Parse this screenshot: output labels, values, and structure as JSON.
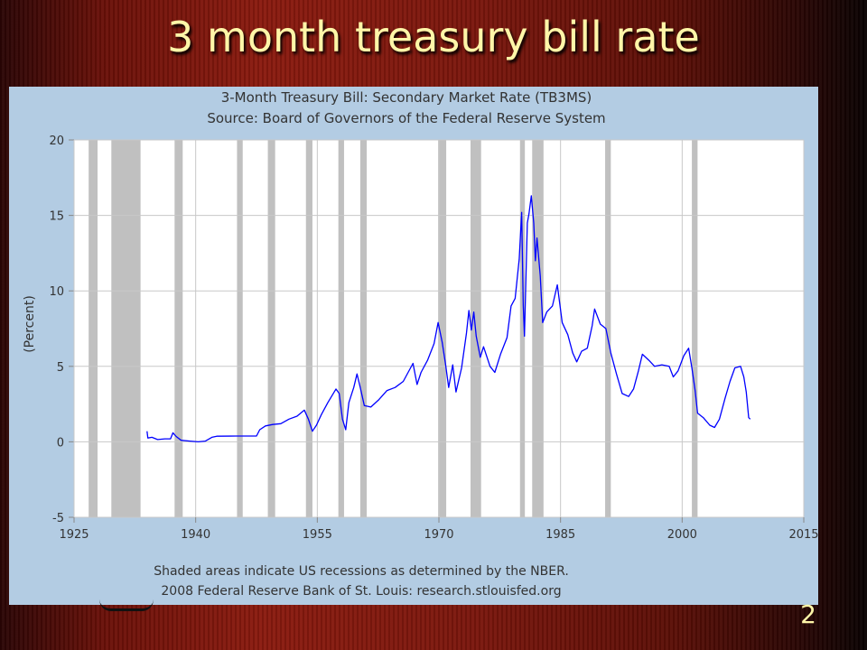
{
  "slide": {
    "title": "3 month treasury bill rate",
    "page_number": "2"
  },
  "chart_data": {
    "type": "line",
    "title": "3-Month Treasury Bill: Secondary Market Rate (TB3MS)",
    "subtitle": "Source: Board of Governors of the Federal Reserve System",
    "xlabel": "",
    "ylabel": "(Percent)",
    "xlim": [
      1925,
      2015
    ],
    "ylim": [
      -5,
      20
    ],
    "xticks": [
      "1925",
      "1940",
      "1955",
      "1970",
      "1985",
      "2000",
      "2015"
    ],
    "yticks": [
      "-5",
      "0",
      "5",
      "10",
      "15",
      "20"
    ],
    "grid": true,
    "line_color": "#0000ff",
    "recession_color": "#c0c0c0",
    "footnotes": [
      "Shaded areas indicate US recessions as determined by the NBER.",
      "2008 Federal Reserve Bank of St. Louis: research.stlouisfed.org"
    ],
    "recessions": [
      [
        1926.8,
        1927.9
      ],
      [
        1929.6,
        1933.2
      ],
      [
        1937.4,
        1938.4
      ],
      [
        1945.1,
        1945.8
      ],
      [
        1948.9,
        1949.8
      ],
      [
        1953.6,
        1954.4
      ],
      [
        1957.6,
        1958.3
      ],
      [
        1960.3,
        1961.1
      ],
      [
        1969.9,
        1970.9
      ],
      [
        1973.9,
        1975.2
      ],
      [
        1980.0,
        1980.6
      ],
      [
        1981.5,
        1982.9
      ],
      [
        1990.5,
        1991.2
      ],
      [
        2001.2,
        2001.9
      ]
    ],
    "series": [
      {
        "values": [
          [
            1934.0,
            0.7
          ],
          [
            1934.1,
            0.25
          ],
          [
            1934.6,
            0.3
          ],
          [
            1935.3,
            0.15
          ],
          [
            1936.2,
            0.2
          ],
          [
            1936.9,
            0.2
          ],
          [
            1937.2,
            0.6
          ],
          [
            1937.6,
            0.35
          ],
          [
            1938.2,
            0.1
          ],
          [
            1939.3,
            0.05
          ],
          [
            1940.3,
            0.0
          ],
          [
            1941.2,
            0.05
          ],
          [
            1942.0,
            0.3
          ],
          [
            1942.6,
            0.37
          ],
          [
            1945.0,
            0.38
          ],
          [
            1947.5,
            0.38
          ],
          [
            1947.9,
            0.8
          ],
          [
            1948.6,
            1.05
          ],
          [
            1949.5,
            1.15
          ],
          [
            1950.5,
            1.2
          ],
          [
            1951.5,
            1.5
          ],
          [
            1952.5,
            1.7
          ],
          [
            1953.4,
            2.1
          ],
          [
            1953.9,
            1.5
          ],
          [
            1954.4,
            0.7
          ],
          [
            1954.9,
            1.1
          ],
          [
            1955.5,
            1.8
          ],
          [
            1956.3,
            2.6
          ],
          [
            1957.3,
            3.5
          ],
          [
            1957.7,
            3.2
          ],
          [
            1958.1,
            1.5
          ],
          [
            1958.5,
            0.8
          ],
          [
            1958.9,
            2.6
          ],
          [
            1959.5,
            3.6
          ],
          [
            1959.9,
            4.5
          ],
          [
            1960.3,
            3.6
          ],
          [
            1960.8,
            2.4
          ],
          [
            1961.6,
            2.3
          ],
          [
            1962.6,
            2.8
          ],
          [
            1963.6,
            3.4
          ],
          [
            1964.6,
            3.6
          ],
          [
            1965.6,
            4.0
          ],
          [
            1966.8,
            5.2
          ],
          [
            1967.3,
            3.8
          ],
          [
            1967.8,
            4.6
          ],
          [
            1968.6,
            5.4
          ],
          [
            1969.4,
            6.5
          ],
          [
            1969.9,
            7.9
          ],
          [
            1970.4,
            6.6
          ],
          [
            1970.8,
            5.2
          ],
          [
            1971.2,
            3.6
          ],
          [
            1971.7,
            5.1
          ],
          [
            1972.1,
            3.3
          ],
          [
            1972.8,
            4.9
          ],
          [
            1973.4,
            7.2
          ],
          [
            1973.7,
            8.7
          ],
          [
            1974.0,
            7.4
          ],
          [
            1974.3,
            8.6
          ],
          [
            1974.6,
            7.0
          ],
          [
            1975.1,
            5.6
          ],
          [
            1975.5,
            6.3
          ],
          [
            1976.3,
            5.0
          ],
          [
            1976.9,
            4.6
          ],
          [
            1977.6,
            5.8
          ],
          [
            1978.4,
            6.9
          ],
          [
            1978.9,
            9.0
          ],
          [
            1979.4,
            9.5
          ],
          [
            1979.9,
            12.1
          ],
          [
            1980.2,
            15.2
          ],
          [
            1980.4,
            9.0
          ],
          [
            1980.55,
            7.0
          ],
          [
            1980.9,
            14.5
          ],
          [
            1981.1,
            15.1
          ],
          [
            1981.4,
            16.3
          ],
          [
            1981.7,
            14.5
          ],
          [
            1981.9,
            12.0
          ],
          [
            1982.1,
            13.5
          ],
          [
            1982.5,
            11.0
          ],
          [
            1982.8,
            7.9
          ],
          [
            1983.3,
            8.6
          ],
          [
            1984.0,
            9.0
          ],
          [
            1984.6,
            10.4
          ],
          [
            1985.2,
            7.9
          ],
          [
            1985.9,
            7.1
          ],
          [
            1986.5,
            5.9
          ],
          [
            1987.0,
            5.3
          ],
          [
            1987.6,
            6.0
          ],
          [
            1988.3,
            6.2
          ],
          [
            1988.9,
            7.7
          ],
          [
            1989.2,
            8.8
          ],
          [
            1989.9,
            7.8
          ],
          [
            1990.6,
            7.5
          ],
          [
            1991.2,
            5.9
          ],
          [
            1991.9,
            4.5
          ],
          [
            1992.6,
            3.2
          ],
          [
            1993.4,
            3.0
          ],
          [
            1994.0,
            3.5
          ],
          [
            1994.6,
            4.7
          ],
          [
            1995.1,
            5.8
          ],
          [
            1995.9,
            5.4
          ],
          [
            1996.6,
            5.0
          ],
          [
            1997.5,
            5.1
          ],
          [
            1998.4,
            5.0
          ],
          [
            1998.9,
            4.3
          ],
          [
            1999.5,
            4.7
          ],
          [
            2000.2,
            5.7
          ],
          [
            2000.8,
            6.2
          ],
          [
            2001.2,
            4.9
          ],
          [
            2001.6,
            3.4
          ],
          [
            2001.9,
            1.9
          ],
          [
            2002.6,
            1.6
          ],
          [
            2003.4,
            1.1
          ],
          [
            2004.0,
            0.95
          ],
          [
            2004.6,
            1.5
          ],
          [
            2005.3,
            2.9
          ],
          [
            2005.9,
            4.0
          ],
          [
            2006.5,
            4.9
          ],
          [
            2007.2,
            5.0
          ],
          [
            2007.6,
            4.3
          ],
          [
            2007.9,
            3.3
          ],
          [
            2008.2,
            1.6
          ],
          [
            2008.4,
            1.5
          ]
        ]
      }
    ]
  }
}
